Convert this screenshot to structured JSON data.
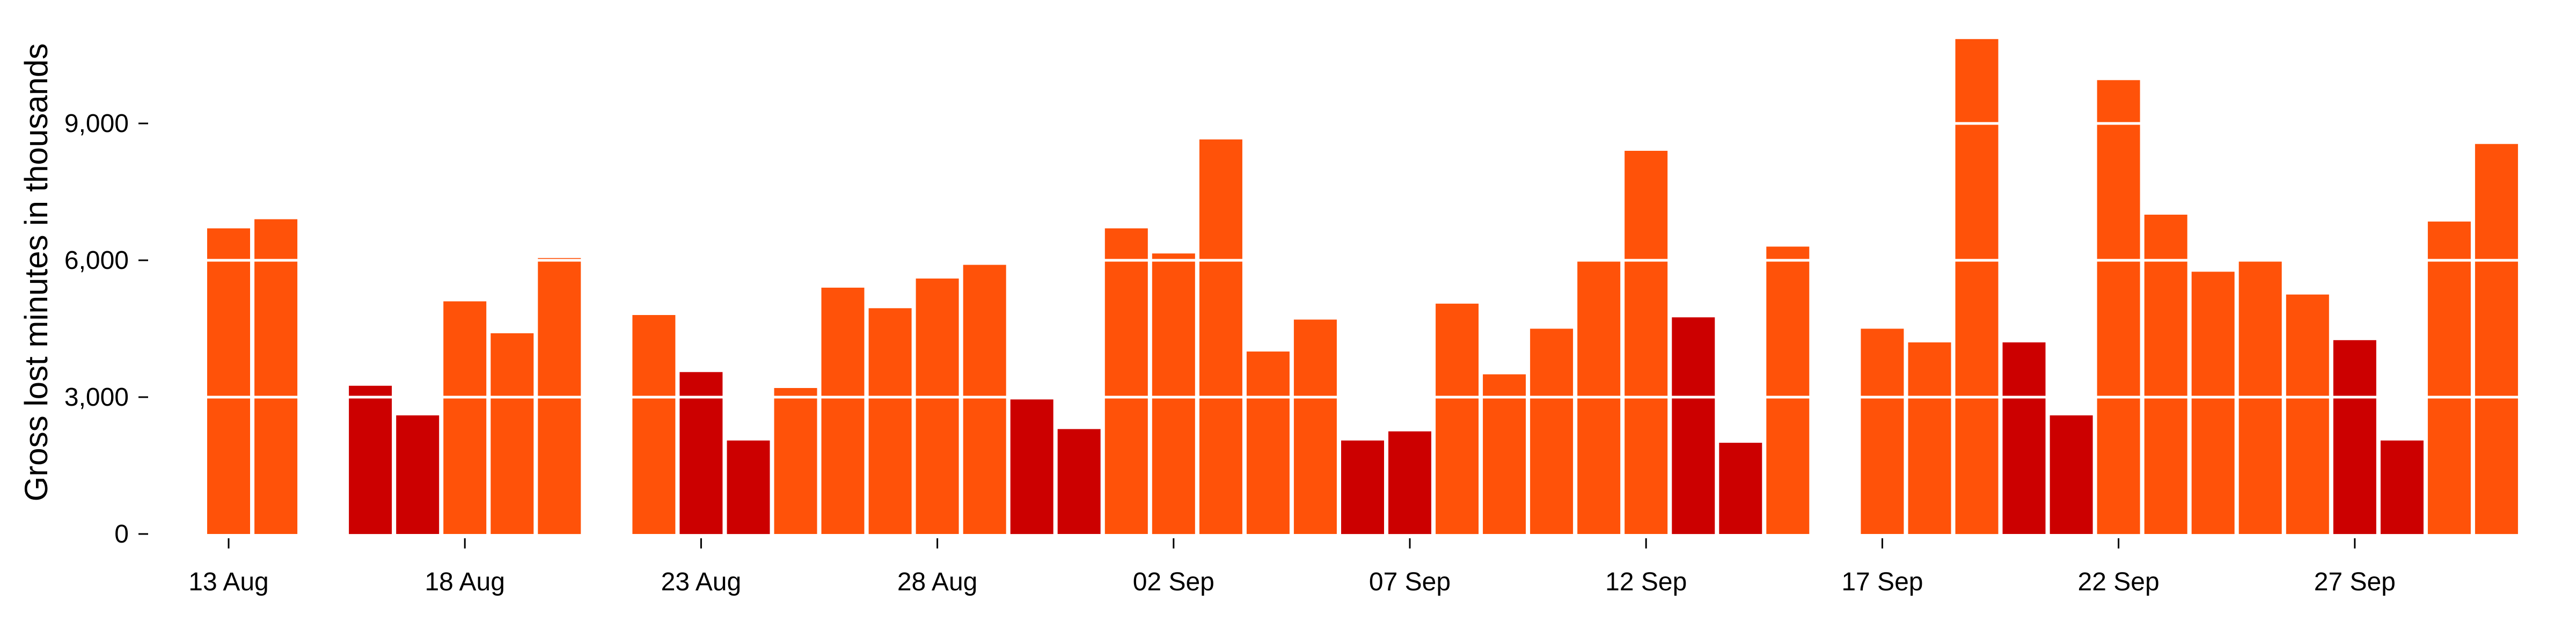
{
  "colors": {
    "weekday": "#ff5209",
    "weekend": "#cc0000",
    "gridline": "#ffffff",
    "axis": "#000000",
    "background": "#ffffff"
  },
  "chart_data": {
    "type": "bar",
    "title": "",
    "xlabel": "",
    "ylabel": "Gross lost minutes in thousands",
    "ylim": [
      0,
      11000
    ],
    "yticks": [
      0,
      3000,
      6000,
      9000
    ],
    "ytick_labels": [
      "0",
      "3,000",
      "6,000",
      "9,000"
    ],
    "grid": "horizontal white gridlines at y ticks, drawn over bars",
    "xlim": [
      "2023-08-12",
      "2023-10-01"
    ],
    "xticks": [
      "2023-08-13",
      "2023-08-18",
      "2023-08-23",
      "2023-08-28",
      "2023-09-02",
      "2023-09-07",
      "2023-09-12",
      "2023-09-17",
      "2023-09-22",
      "2023-09-27"
    ],
    "xtick_labels": [
      "13 Aug",
      "18 Aug",
      "23 Aug",
      "28 Aug",
      "02 Sep",
      "07 Sep",
      "12 Sep",
      "17 Sep",
      "22 Sep",
      "27 Sep"
    ],
    "bars": [
      {
        "date": "2023-08-13",
        "value": 6700,
        "kind": "weekday"
      },
      {
        "date": "2023-08-14",
        "value": 6900,
        "kind": "weekday"
      },
      {
        "date": "2023-08-16",
        "value": 3250,
        "kind": "weekend"
      },
      {
        "date": "2023-08-17",
        "value": 2600,
        "kind": "weekend"
      },
      {
        "date": "2023-08-18",
        "value": 5100,
        "kind": "weekday"
      },
      {
        "date": "2023-08-19",
        "value": 4400,
        "kind": "weekday"
      },
      {
        "date": "2023-08-20",
        "value": 6050,
        "kind": "weekday"
      },
      {
        "date": "2023-08-22",
        "value": 4800,
        "kind": "weekday"
      },
      {
        "date": "2023-08-23",
        "value": 3550,
        "kind": "weekend"
      },
      {
        "date": "2023-08-24",
        "value": 2050,
        "kind": "weekend"
      },
      {
        "date": "2023-08-25",
        "value": 3200,
        "kind": "weekday"
      },
      {
        "date": "2023-08-26",
        "value": 5400,
        "kind": "weekday"
      },
      {
        "date": "2023-08-27",
        "value": 4950,
        "kind": "weekday"
      },
      {
        "date": "2023-08-28",
        "value": 5600,
        "kind": "weekday"
      },
      {
        "date": "2023-08-29",
        "value": 5900,
        "kind": "weekday"
      },
      {
        "date": "2023-08-30",
        "value": 2950,
        "kind": "weekend"
      },
      {
        "date": "2023-08-31",
        "value": 2300,
        "kind": "weekend"
      },
      {
        "date": "2023-09-01",
        "value": 6700,
        "kind": "weekday"
      },
      {
        "date": "2023-09-02",
        "value": 6150,
        "kind": "weekday"
      },
      {
        "date": "2023-09-03",
        "value": 8650,
        "kind": "weekday"
      },
      {
        "date": "2023-09-04",
        "value": 4000,
        "kind": "weekday"
      },
      {
        "date": "2023-09-05",
        "value": 4700,
        "kind": "weekday"
      },
      {
        "date": "2023-09-06",
        "value": 2050,
        "kind": "weekend"
      },
      {
        "date": "2023-09-07",
        "value": 2250,
        "kind": "weekend"
      },
      {
        "date": "2023-09-08",
        "value": 5050,
        "kind": "weekday"
      },
      {
        "date": "2023-09-09",
        "value": 3500,
        "kind": "weekday"
      },
      {
        "date": "2023-09-10",
        "value": 4500,
        "kind": "weekday"
      },
      {
        "date": "2023-09-11",
        "value": 6000,
        "kind": "weekday"
      },
      {
        "date": "2023-09-12",
        "value": 8400,
        "kind": "weekday"
      },
      {
        "date": "2023-09-13",
        "value": 4750,
        "kind": "weekend"
      },
      {
        "date": "2023-09-14",
        "value": 2000,
        "kind": "weekend"
      },
      {
        "date": "2023-09-15",
        "value": 6300,
        "kind": "weekday"
      },
      {
        "date": "2023-09-17",
        "value": 4500,
        "kind": "weekday"
      },
      {
        "date": "2023-09-18",
        "value": 4200,
        "kind": "weekday"
      },
      {
        "date": "2023-09-19",
        "value": 10850,
        "kind": "weekday"
      },
      {
        "date": "2023-09-20",
        "value": 4200,
        "kind": "weekend"
      },
      {
        "date": "2023-09-21",
        "value": 2600,
        "kind": "weekend"
      },
      {
        "date": "2023-09-22",
        "value": 9950,
        "kind": "weekday"
      },
      {
        "date": "2023-09-23",
        "value": 7000,
        "kind": "weekday"
      },
      {
        "date": "2023-09-24",
        "value": 5750,
        "kind": "weekday"
      },
      {
        "date": "2023-09-25",
        "value": 6000,
        "kind": "weekday"
      },
      {
        "date": "2023-09-26",
        "value": 5250,
        "kind": "weekday"
      },
      {
        "date": "2023-09-27",
        "value": 4250,
        "kind": "weekend"
      },
      {
        "date": "2023-09-28",
        "value": 2050,
        "kind": "weekend"
      },
      {
        "date": "2023-09-29",
        "value": 6850,
        "kind": "weekday"
      },
      {
        "date": "2023-09-30",
        "value": 8550,
        "kind": "weekday"
      }
    ]
  }
}
